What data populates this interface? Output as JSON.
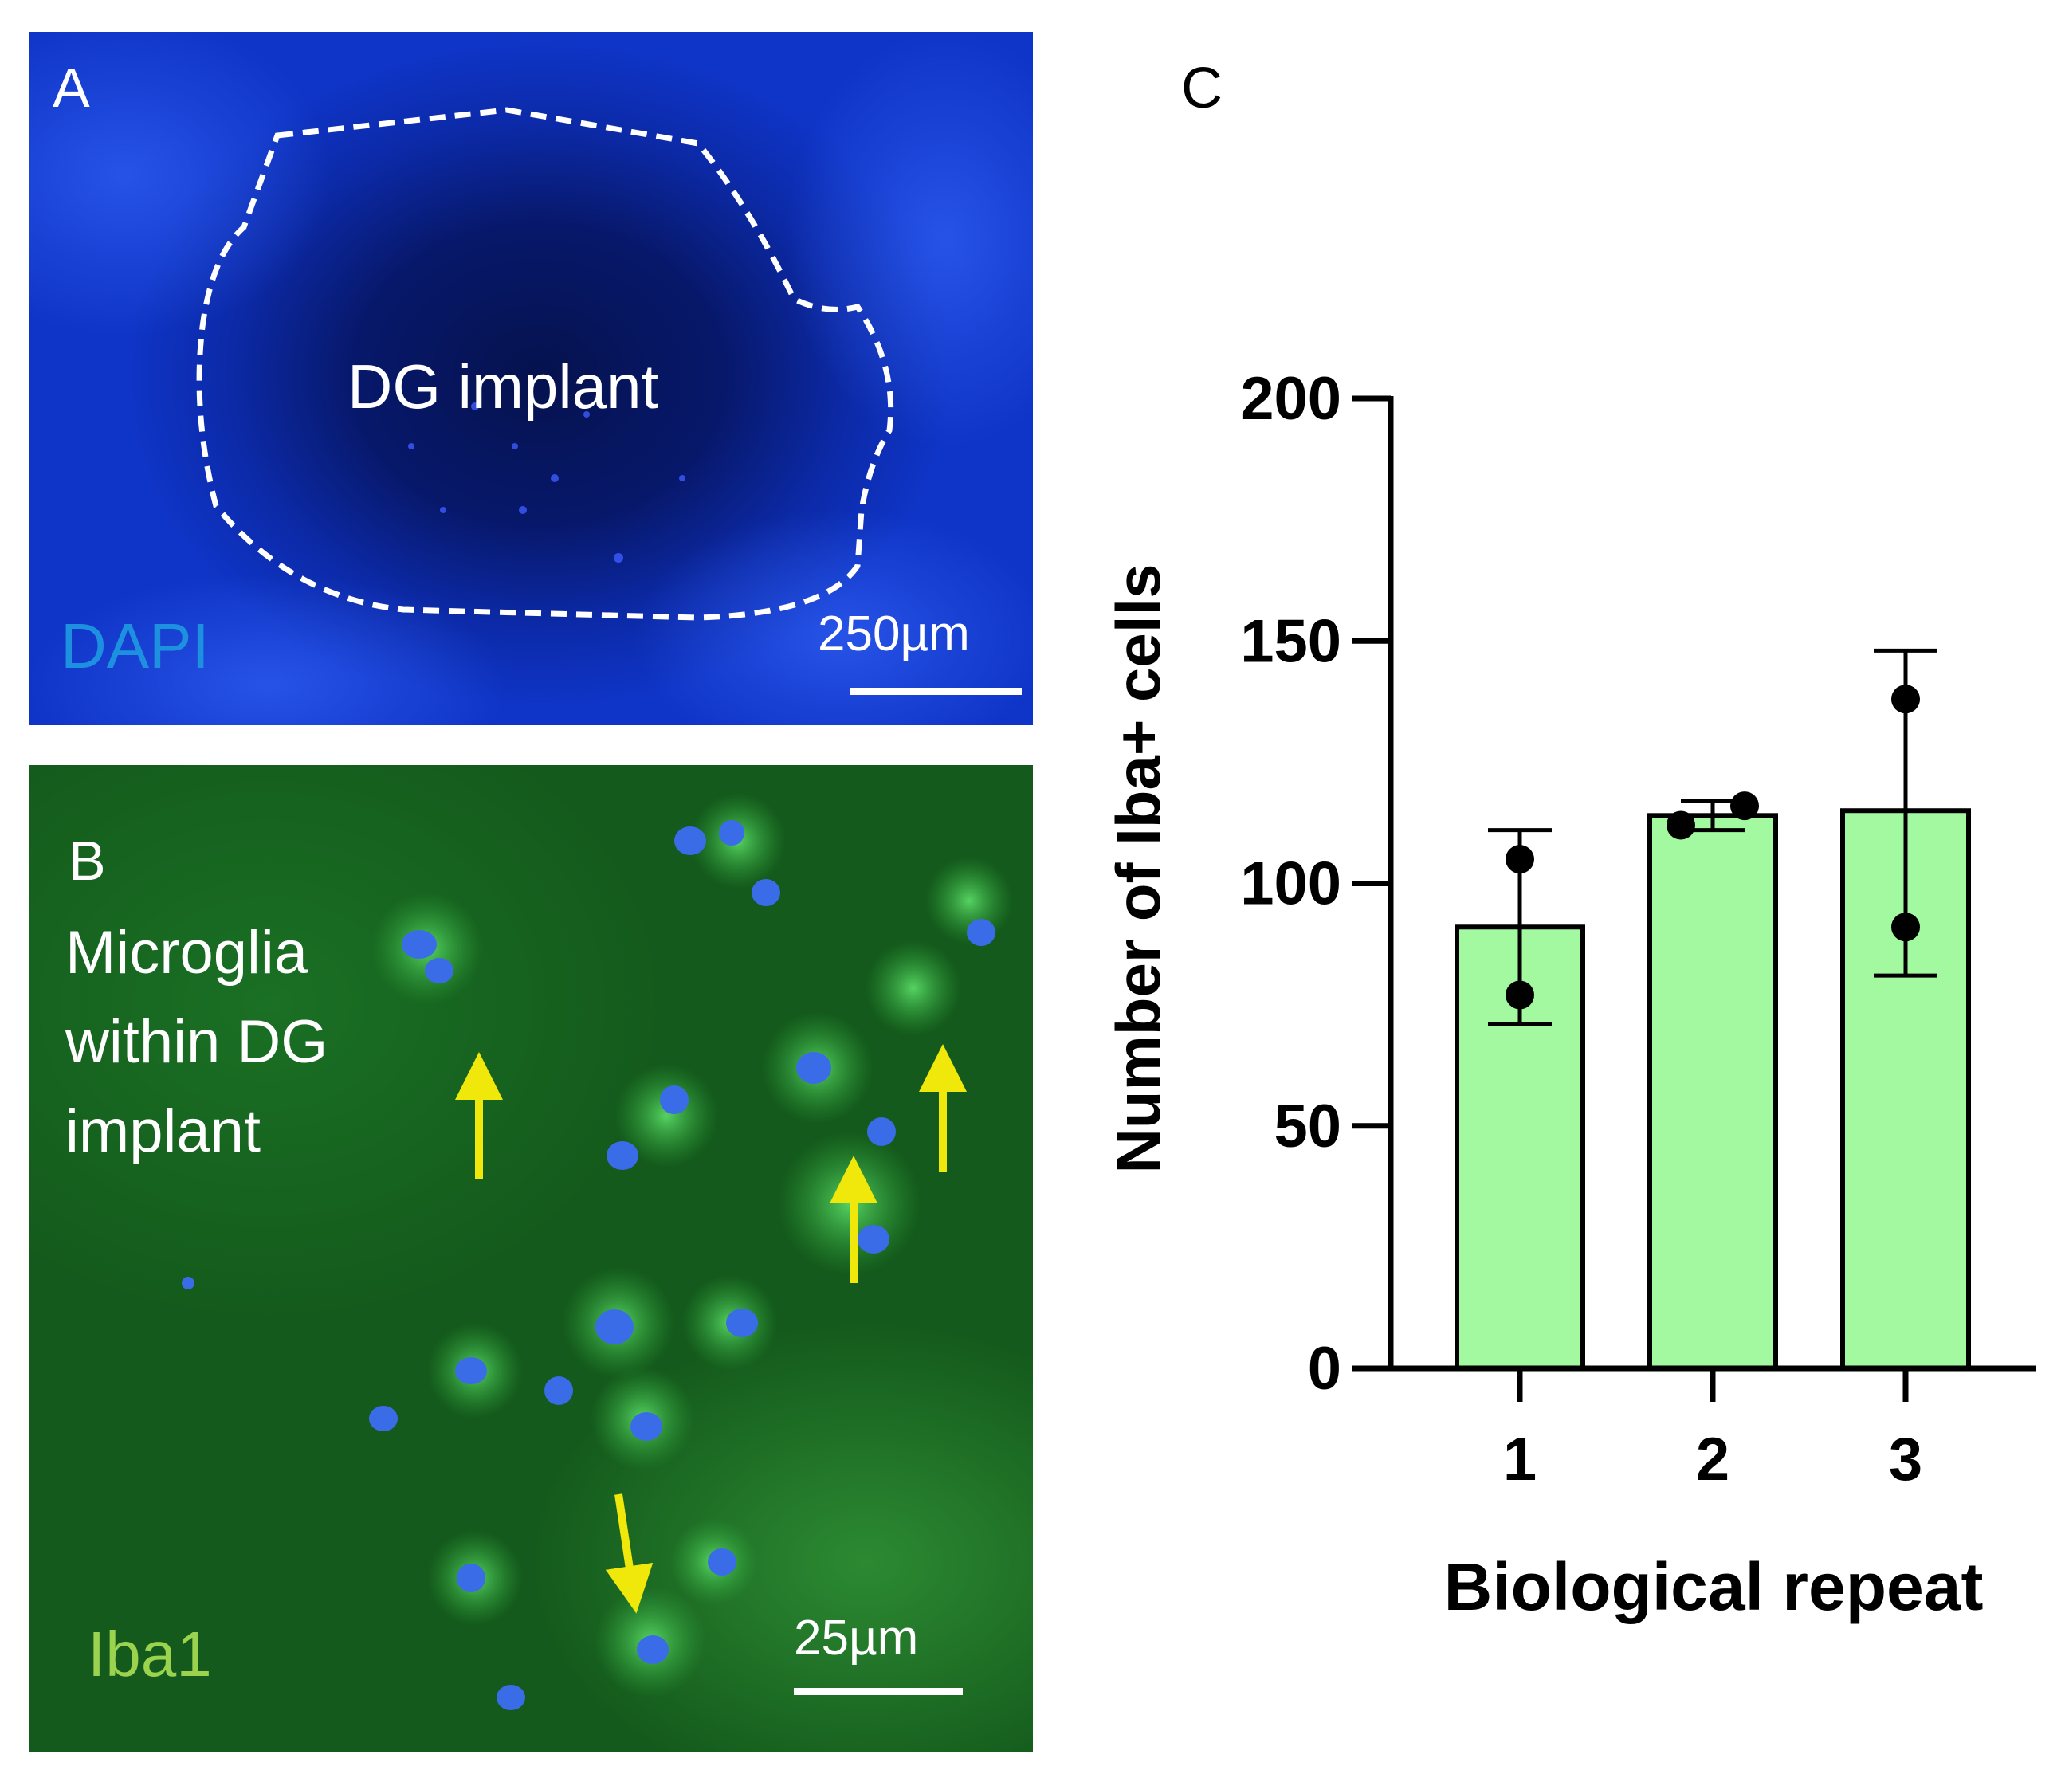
{
  "panel_a": {
    "letter": "A",
    "region_label": "DG implant",
    "stain_label": "DAPI",
    "stain_color": "#1e90e0",
    "scale_bar": "250µm"
  },
  "panel_b": {
    "letter": "B",
    "caption": "Microglia\nwithin DG\nimplant",
    "stain_label": "Iba1",
    "stain_color": "#9bd34e",
    "scale_bar": "25µm",
    "arrow_color": "#f0e80a"
  },
  "panel_c": {
    "letter": "C"
  },
  "chart_data": {
    "type": "bar",
    "categories": [
      "1",
      "2",
      "3"
    ],
    "values": [
      91,
      114,
      115
    ],
    "error": [
      [
        71,
        111
      ],
      [
        111,
        117
      ],
      [
        81,
        148
      ]
    ],
    "points": [
      [
        105,
        77
      ],
      [
        112,
        116
      ],
      [
        138,
        91
      ]
    ],
    "xlabel": "Biological repeat",
    "ylabel": "Number of Iba+ cells",
    "ylim": [
      0,
      200
    ],
    "yticks": [
      0,
      50,
      100,
      150,
      200
    ],
    "bar_color": "#a3f9a0",
    "grid": false
  }
}
